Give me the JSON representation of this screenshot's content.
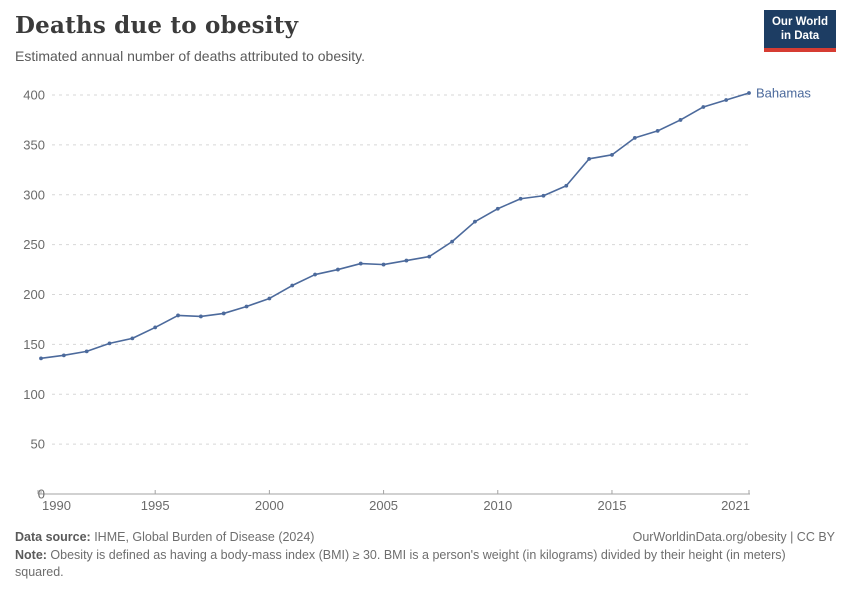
{
  "header": {
    "title": "Deaths due to obesity",
    "subtitle": "Estimated annual number of deaths attributed to obesity.",
    "logo": {
      "line1": "Our World",
      "line2": "in Data"
    }
  },
  "chart_data": {
    "type": "line",
    "title": "Deaths due to obesity",
    "xlabel": "",
    "ylabel": "",
    "xlim": [
      1990,
      2021
    ],
    "ylim": [
      0,
      400
    ],
    "grid": "horizontal-dashed",
    "legend_position": "end-of-line-label",
    "xticks": [
      1990,
      1995,
      2000,
      2005,
      2010,
      2015,
      2021
    ],
    "yticks": [
      0,
      50,
      100,
      150,
      200,
      250,
      300,
      350,
      400
    ],
    "series": [
      {
        "name": "Bahamas",
        "color": "#4c6a9c",
        "x": [
          1990,
          1991,
          1992,
          1993,
          1994,
          1995,
          1996,
          1997,
          1998,
          1999,
          2000,
          2001,
          2002,
          2003,
          2004,
          2005,
          2006,
          2007,
          2008,
          2009,
          2010,
          2011,
          2012,
          2013,
          2014,
          2015,
          2016,
          2017,
          2018,
          2019,
          2020,
          2021
        ],
        "values": [
          136,
          139,
          143,
          151,
          156,
          167,
          179,
          178,
          181,
          188,
          196,
          209,
          220,
          225,
          231,
          230,
          234,
          238,
          253,
          273,
          286,
          296,
          299,
          309,
          336,
          340,
          357,
          364,
          375,
          388,
          395,
          402
        ]
      }
    ]
  },
  "footer": {
    "datasource_label": "Data source:",
    "datasource_value": " IHME, Global Burden of Disease (2024)",
    "rights": "OurWorldinData.org/obesity | CC BY",
    "note_label": "Note:",
    "note_value": " Obesity is defined as having a body-mass index (BMI) ≥ 30. BMI is a person's weight (in kilograms) divided by their height (in meters) squared."
  },
  "colors": {
    "accent_line": "#4c6a9c",
    "logo_bg": "#1d3d63",
    "logo_bar": "#d63c32",
    "grid": "#d7d7d7",
    "axis": "#a3a3a3",
    "tick_text": "#6b6b6b"
  }
}
